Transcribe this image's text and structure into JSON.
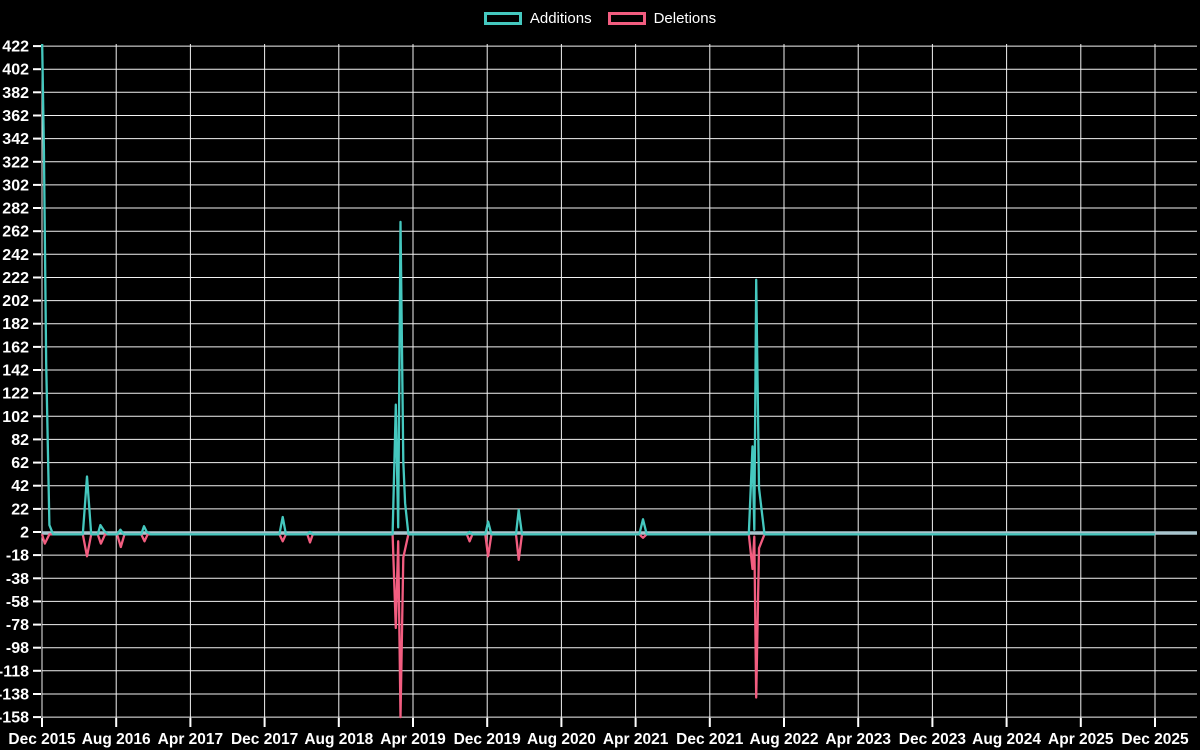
{
  "page": {
    "background_color": "#000000",
    "text_color": "#ffffff"
  },
  "chart_data": {
    "type": "line",
    "title": "",
    "xlabel": "",
    "ylabel": "",
    "grid": "on",
    "legend_position": "top-center",
    "grid_color": "#f2f2f2",
    "baseline_color": "#a9c5ce",
    "x_unit": "months since Dec 2015",
    "x_range_months": [
      0,
      120
    ],
    "x_labels": [
      {
        "m": 0,
        "text": "Dec 2015"
      },
      {
        "m": 8,
        "text": "Aug 2016"
      },
      {
        "m": 16,
        "text": "Apr 2017"
      },
      {
        "m": 24,
        "text": "Dec 2017"
      },
      {
        "m": 32,
        "text": "Aug 2018"
      },
      {
        "m": 40,
        "text": "Apr 2019"
      },
      {
        "m": 48,
        "text": "Dec 2019"
      },
      {
        "m": 56,
        "text": "Aug 2020"
      },
      {
        "m": 64,
        "text": "Apr 2021"
      },
      {
        "m": 72,
        "text": "Dec 2021"
      },
      {
        "m": 80,
        "text": "Aug 2022"
      },
      {
        "m": 88,
        "text": "Apr 2023"
      },
      {
        "m": 96,
        "text": "Dec 2023"
      },
      {
        "m": 104,
        "text": "Aug 2024"
      },
      {
        "m": 112,
        "text": "Apr 2025"
      },
      {
        "m": 120,
        "text": "Dec 2025"
      }
    ],
    "y_axis": {
      "max_tick": 422,
      "min_tick": -158,
      "step": 20
    },
    "series": [
      {
        "name": "Additions",
        "color": "#45c8bf",
        "points": [
          [
            0,
            433
          ],
          [
            0.2,
            333
          ],
          [
            0.45,
            147
          ],
          [
            0.8,
            8
          ],
          [
            1.2,
            0
          ],
          [
            4.4,
            0
          ],
          [
            4.85,
            50
          ],
          [
            5.3,
            0
          ],
          [
            6.0,
            0
          ],
          [
            6.3,
            8
          ],
          [
            6.7,
            3
          ],
          [
            7.1,
            0
          ],
          [
            8.1,
            0
          ],
          [
            8.45,
            4
          ],
          [
            8.8,
            0
          ],
          [
            10.7,
            0
          ],
          [
            11.0,
            7
          ],
          [
            11.3,
            2
          ],
          [
            11.7,
            0
          ],
          [
            25.6,
            0
          ],
          [
            25.95,
            15
          ],
          [
            26.3,
            0
          ],
          [
            28.6,
            0
          ],
          [
            28.9,
            2
          ],
          [
            29.2,
            0
          ],
          [
            37.8,
            0
          ],
          [
            38.15,
            112
          ],
          [
            38.4,
            6
          ],
          [
            38.65,
            270
          ],
          [
            38.95,
            63
          ],
          [
            39.15,
            27
          ],
          [
            39.5,
            0
          ],
          [
            45.8,
            0
          ],
          [
            46.1,
            2
          ],
          [
            46.4,
            0
          ],
          [
            47.8,
            0
          ],
          [
            48.1,
            11
          ],
          [
            48.45,
            0
          ],
          [
            51.1,
            0
          ],
          [
            51.4,
            21
          ],
          [
            51.75,
            0
          ],
          [
            64.4,
            0
          ],
          [
            64.8,
            13
          ],
          [
            65.2,
            0
          ],
          [
            76.2,
            0
          ],
          [
            76.6,
            76
          ],
          [
            76.8,
            4
          ],
          [
            77.0,
            220
          ],
          [
            77.3,
            40
          ],
          [
            77.5,
            27
          ],
          [
            77.9,
            0
          ],
          [
            120,
            0
          ]
        ]
      },
      {
        "name": "Deletions",
        "color": "#f25d80",
        "points": [
          [
            0,
            0
          ],
          [
            0.3,
            -8
          ],
          [
            0.8,
            0
          ],
          [
            4.4,
            0
          ],
          [
            4.85,
            -19
          ],
          [
            5.3,
            0
          ],
          [
            6.0,
            0
          ],
          [
            6.35,
            -8
          ],
          [
            6.8,
            0
          ],
          [
            8.1,
            0
          ],
          [
            8.5,
            -11
          ],
          [
            8.9,
            0
          ],
          [
            10.7,
            0
          ],
          [
            11.05,
            -6
          ],
          [
            11.4,
            0
          ],
          [
            25.6,
            0
          ],
          [
            25.95,
            -6
          ],
          [
            26.3,
            0
          ],
          [
            28.6,
            0
          ],
          [
            28.9,
            -7
          ],
          [
            29.2,
            0
          ],
          [
            37.8,
            0
          ],
          [
            38.15,
            -81
          ],
          [
            38.4,
            -6
          ],
          [
            38.65,
            -158
          ],
          [
            38.95,
            -20
          ],
          [
            39.5,
            0
          ],
          [
            45.8,
            0
          ],
          [
            46.1,
            -6
          ],
          [
            46.4,
            0
          ],
          [
            47.8,
            0
          ],
          [
            48.1,
            -19
          ],
          [
            48.45,
            0
          ],
          [
            51.1,
            0
          ],
          [
            51.4,
            -22
          ],
          [
            51.75,
            0
          ],
          [
            64.4,
            0
          ],
          [
            64.8,
            -3
          ],
          [
            65.2,
            0
          ],
          [
            76.2,
            0
          ],
          [
            76.6,
            -30
          ],
          [
            76.8,
            -2
          ],
          [
            77.0,
            -141
          ],
          [
            77.3,
            -12
          ],
          [
            77.9,
            0
          ],
          [
            120,
            0
          ]
        ]
      }
    ]
  }
}
